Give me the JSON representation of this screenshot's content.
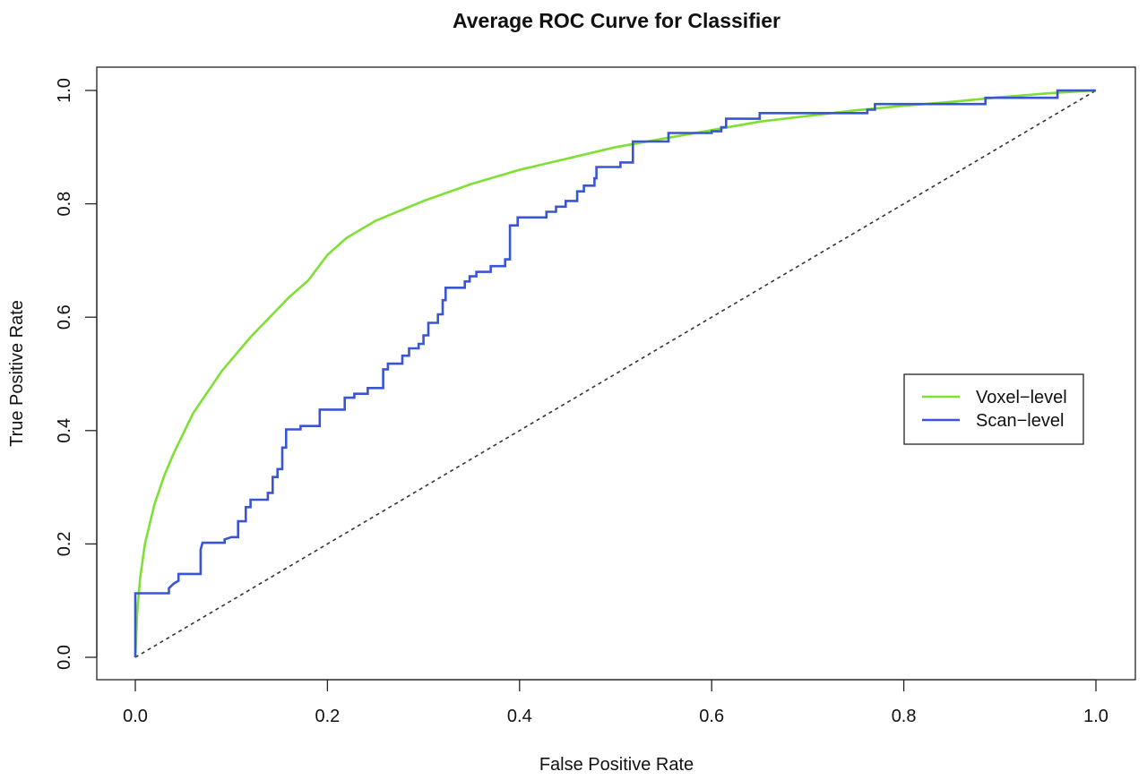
{
  "chart_data": {
    "type": "line",
    "title": "Average ROC Curve for Classifier",
    "xlabel": "False Positive Rate",
    "ylabel": "True Positive Rate",
    "xlim": [
      0,
      1
    ],
    "ylim": [
      0,
      1
    ],
    "x_ticks": [
      "0.0",
      "0.2",
      "0.4",
      "0.6",
      "0.8",
      "1.0"
    ],
    "y_ticks": [
      "0.0",
      "0.2",
      "0.4",
      "0.6",
      "0.8",
      "1.0"
    ],
    "grid": false,
    "legend_position": "right",
    "diagonal_reference": {
      "style": "dashed",
      "color": "#333333",
      "x": [
        0,
        1
      ],
      "y": [
        0,
        1
      ]
    },
    "series": [
      {
        "name": "Voxel−level",
        "color": "#7fe033",
        "step": false,
        "points": [
          [
            0,
            0
          ],
          [
            0.002,
            0.08
          ],
          [
            0.005,
            0.14
          ],
          [
            0.01,
            0.2
          ],
          [
            0.02,
            0.27
          ],
          [
            0.03,
            0.32
          ],
          [
            0.04,
            0.36
          ],
          [
            0.05,
            0.395
          ],
          [
            0.06,
            0.43
          ],
          [
            0.07,
            0.455
          ],
          [
            0.08,
            0.48
          ],
          [
            0.09,
            0.505
          ],
          [
            0.1,
            0.525
          ],
          [
            0.12,
            0.565
          ],
          [
            0.14,
            0.6
          ],
          [
            0.16,
            0.635
          ],
          [
            0.18,
            0.665
          ],
          [
            0.2,
            0.71
          ],
          [
            0.22,
            0.74
          ],
          [
            0.25,
            0.77
          ],
          [
            0.3,
            0.805
          ],
          [
            0.35,
            0.835
          ],
          [
            0.4,
            0.86
          ],
          [
            0.45,
            0.88
          ],
          [
            0.5,
            0.9
          ],
          [
            0.55,
            0.915
          ],
          [
            0.6,
            0.93
          ],
          [
            0.65,
            0.945
          ],
          [
            0.7,
            0.955
          ],
          [
            0.75,
            0.965
          ],
          [
            0.8,
            0.973
          ],
          [
            0.85,
            0.98
          ],
          [
            0.9,
            0.988
          ],
          [
            0.95,
            0.995
          ],
          [
            1,
            1
          ]
        ]
      },
      {
        "name": "Scan−level",
        "color": "#3a55d4",
        "step": true,
        "points": [
          [
            0,
            0
          ],
          [
            0,
            0.113
          ],
          [
            0.035,
            0.113
          ],
          [
            0.035,
            0.122
          ],
          [
            0.04,
            0.13
          ],
          [
            0.045,
            0.135
          ],
          [
            0.045,
            0.147
          ],
          [
            0.068,
            0.147
          ],
          [
            0.068,
            0.19
          ],
          [
            0.07,
            0.202
          ],
          [
            0.093,
            0.202
          ],
          [
            0.093,
            0.208
          ],
          [
            0.1,
            0.212
          ],
          [
            0.107,
            0.212
          ],
          [
            0.107,
            0.24
          ],
          [
            0.115,
            0.24
          ],
          [
            0.115,
            0.265
          ],
          [
            0.12,
            0.265
          ],
          [
            0.12,
            0.278
          ],
          [
            0.138,
            0.278
          ],
          [
            0.138,
            0.29
          ],
          [
            0.143,
            0.29
          ],
          [
            0.143,
            0.318
          ],
          [
            0.148,
            0.318
          ],
          [
            0.148,
            0.332
          ],
          [
            0.153,
            0.332
          ],
          [
            0.153,
            0.37
          ],
          [
            0.157,
            0.37
          ],
          [
            0.157,
            0.402
          ],
          [
            0.172,
            0.402
          ],
          [
            0.172,
            0.408
          ],
          [
            0.192,
            0.408
          ],
          [
            0.192,
            0.437
          ],
          [
            0.218,
            0.437
          ],
          [
            0.218,
            0.458
          ],
          [
            0.228,
            0.458
          ],
          [
            0.228,
            0.465
          ],
          [
            0.242,
            0.465
          ],
          [
            0.242,
            0.475
          ],
          [
            0.258,
            0.475
          ],
          [
            0.258,
            0.508
          ],
          [
            0.263,
            0.508
          ],
          [
            0.263,
            0.518
          ],
          [
            0.278,
            0.518
          ],
          [
            0.278,
            0.532
          ],
          [
            0.285,
            0.532
          ],
          [
            0.285,
            0.545
          ],
          [
            0.295,
            0.545
          ],
          [
            0.295,
            0.553
          ],
          [
            0.3,
            0.553
          ],
          [
            0.3,
            0.568
          ],
          [
            0.305,
            0.568
          ],
          [
            0.305,
            0.59
          ],
          [
            0.315,
            0.59
          ],
          [
            0.315,
            0.605
          ],
          [
            0.32,
            0.605
          ],
          [
            0.32,
            0.63
          ],
          [
            0.323,
            0.63
          ],
          [
            0.323,
            0.652
          ],
          [
            0.343,
            0.652
          ],
          [
            0.343,
            0.663
          ],
          [
            0.348,
            0.663
          ],
          [
            0.348,
            0.672
          ],
          [
            0.355,
            0.672
          ],
          [
            0.355,
            0.68
          ],
          [
            0.37,
            0.68
          ],
          [
            0.37,
            0.69
          ],
          [
            0.385,
            0.69
          ],
          [
            0.385,
            0.702
          ],
          [
            0.39,
            0.702
          ],
          [
            0.39,
            0.762
          ],
          [
            0.398,
            0.762
          ],
          [
            0.398,
            0.776
          ],
          [
            0.428,
            0.776
          ],
          [
            0.428,
            0.786
          ],
          [
            0.438,
            0.786
          ],
          [
            0.438,
            0.795
          ],
          [
            0.448,
            0.795
          ],
          [
            0.448,
            0.805
          ],
          [
            0.46,
            0.805
          ],
          [
            0.46,
            0.822
          ],
          [
            0.467,
            0.822
          ],
          [
            0.467,
            0.832
          ],
          [
            0.478,
            0.832
          ],
          [
            0.478,
            0.845
          ],
          [
            0.48,
            0.845
          ],
          [
            0.48,
            0.865
          ],
          [
            0.505,
            0.865
          ],
          [
            0.505,
            0.873
          ],
          [
            0.518,
            0.873
          ],
          [
            0.518,
            0.91
          ],
          [
            0.555,
            0.91
          ],
          [
            0.555,
            0.925
          ],
          [
            0.6,
            0.925
          ],
          [
            0.6,
            0.928
          ],
          [
            0.61,
            0.928
          ],
          [
            0.61,
            0.935
          ],
          [
            0.615,
            0.935
          ],
          [
            0.615,
            0.95
          ],
          [
            0.65,
            0.95
          ],
          [
            0.65,
            0.96
          ],
          [
            0.762,
            0.96
          ],
          [
            0.762,
            0.966
          ],
          [
            0.77,
            0.966
          ],
          [
            0.77,
            0.976
          ],
          [
            0.885,
            0.976
          ],
          [
            0.885,
            0.987
          ],
          [
            0.96,
            0.987
          ],
          [
            0.96,
            1
          ],
          [
            1,
            1
          ]
        ]
      }
    ]
  }
}
